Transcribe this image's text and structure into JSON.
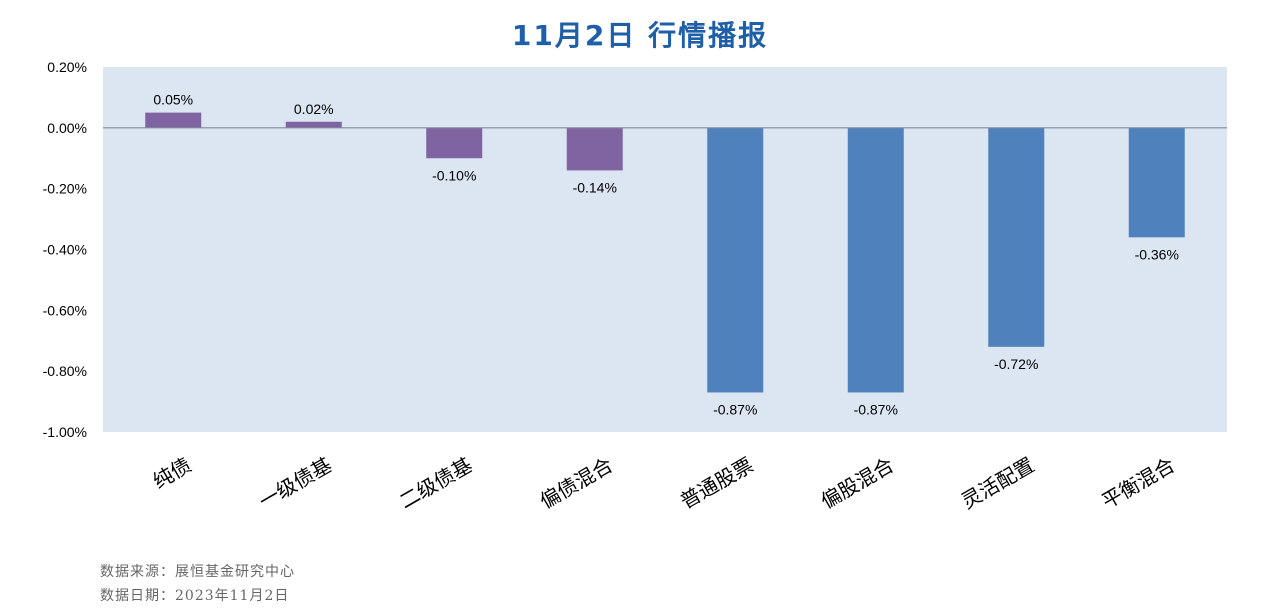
{
  "chart_data": {
    "type": "bar",
    "title": "11月2日  行情播报",
    "categories": [
      "纯债",
      "一级债基",
      "二级债基",
      "偏债混合",
      "普通股票",
      "偏股混合",
      "灵活配置",
      "平衡混合"
    ],
    "values": [
      0.05,
      0.02,
      -0.1,
      -0.14,
      -0.87,
      -0.87,
      -0.72,
      -0.36
    ],
    "value_labels": [
      "0.05%",
      "0.02%",
      "-0.10%",
      "-0.14%",
      "-0.87%",
      "-0.87%",
      "-0.72%",
      "-0.36%"
    ],
    "bar_colors": [
      "#8064a2",
      "#8064a2",
      "#8064a2",
      "#8064a2",
      "#4f81bd",
      "#4f81bd",
      "#4f81bd",
      "#4f81bd"
    ],
    "ylim": [
      -1.0,
      0.2
    ],
    "yticks": [
      0.2,
      0.0,
      -0.2,
      -0.4,
      -0.6,
      -0.8,
      -1.0
    ],
    "ytick_labels": [
      "0.20%",
      "0.00%",
      "-0.20%",
      "-0.40%",
      "-0.60%",
      "-0.80%",
      "-1.00%"
    ],
    "unit": "%",
    "xlabel": "",
    "ylabel": "",
    "grid": false,
    "legend": "none",
    "plot_background": "#dce6f2"
  },
  "footer": {
    "source": "数据来源：展恒基金研究中心",
    "date": "数据日期：2023年11月2日"
  },
  "colors": {
    "title": "#1f5fa8",
    "footer_text": "#666666"
  }
}
